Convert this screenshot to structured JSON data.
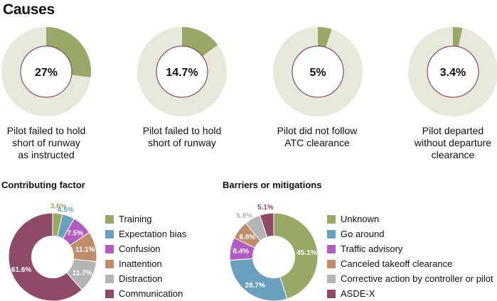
{
  "title": "Causes",
  "colors": {
    "ring_bg": "#e6e9dc",
    "ring_fill": "#98a866",
    "center_stroke": "#8a4a66"
  },
  "causes": [
    {
      "value_label": "27%",
      "value": 27,
      "label_lines": [
        "Pilot failed to hold",
        "short of runway",
        "as instructed"
      ]
    },
    {
      "value_label": "14.7%",
      "value": 14.7,
      "label_lines": [
        "Pilot failed to hold",
        "short of runway"
      ]
    },
    {
      "value_label": "5%",
      "value": 5,
      "label_lines": [
        "Pilot did not follow",
        "ATC clearance"
      ]
    },
    {
      "value_label": "3.4%",
      "value": 3.4,
      "label_lines": [
        "Pilot departed",
        "without departure",
        "clearance"
      ]
    }
  ],
  "contributing": {
    "title": "Contributing factor",
    "legend": [
      {
        "label": "Training",
        "color": "#98a866"
      },
      {
        "label": "Expectation bias",
        "color": "#6a9fbd"
      },
      {
        "label": "Confusion",
        "color": "#b25cc1"
      },
      {
        "label": "Inattention",
        "color": "#bf8c6c"
      },
      {
        "label": "Distraction",
        "color": "#b4b4b4"
      },
      {
        "label": "Communication",
        "color": "#8f4a6a"
      }
    ]
  },
  "barriers": {
    "title": "Barriers or mitigations",
    "legend": [
      {
        "label": "Unknown",
        "color": "#98a866"
      },
      {
        "label": "Go around",
        "color": "#6a9fbd"
      },
      {
        "label": "Traffic advisory",
        "color": "#b25cc1"
      },
      {
        "label": "Canceled takeoff clearance",
        "color": "#bf8c6c"
      },
      {
        "label": "Corrective action by controller or pilot",
        "color": "#b4b4b4"
      },
      {
        "label": "ASDE-X",
        "color": "#8f4a6a"
      }
    ]
  },
  "chart_data": [
    {
      "type": "pie",
      "title": "Pilot failed to hold short of runway as instructed",
      "values": [
        27
      ],
      "labels": [
        "27%"
      ]
    },
    {
      "type": "pie",
      "title": "Pilot failed to hold short of runway",
      "values": [
        14.7
      ],
      "labels": [
        "14.7%"
      ]
    },
    {
      "type": "pie",
      "title": "Pilot did not follow ATC clearance",
      "values": [
        5
      ],
      "labels": [
        "5%"
      ]
    },
    {
      "type": "pie",
      "title": "Pilot departed without departure clearance",
      "values": [
        3.4
      ],
      "labels": [
        "3.4%"
      ]
    },
    {
      "type": "pie",
      "title": "Contributing factor",
      "categories": [
        "Training",
        "Expectation bias",
        "Confusion",
        "Inattention",
        "Distraction",
        "Communication"
      ],
      "values": [
        3.6,
        4.5,
        7.5,
        11.1,
        11.7,
        61.6
      ],
      "labels": [
        "3.6%",
        "4.5%",
        "7.5%",
        "11.1%",
        "11.7%",
        "61.6%"
      ],
      "colors": [
        "#98a866",
        "#6a9fbd",
        "#b25cc1",
        "#bf8c6c",
        "#b4b4b4",
        "#8f4a6a"
      ],
      "label_colors": [
        "#98a866",
        "#6a9fbd",
        "#ffffff",
        "#ffffff",
        "#ffffff",
        "#ffffff"
      ]
    },
    {
      "type": "pie",
      "title": "Barriers or mitigations",
      "categories": [
        "Unknown",
        "Go around",
        "Traffic advisory",
        "Canceled takeoff clearance",
        "Corrective action by controller or pilot",
        "ASDE-X"
      ],
      "values": [
        45.1,
        28.7,
        8.4,
        6.8,
        5.9,
        5.1
      ],
      "labels": [
        "45.1%",
        "28.7%",
        "8.4%",
        "6.8%",
        "5.9%",
        "5.1%"
      ],
      "colors": [
        "#98a866",
        "#6a9fbd",
        "#b25cc1",
        "#bf8c6c",
        "#b4b4b4",
        "#8f4a6a"
      ],
      "label_colors": [
        "#ffffff",
        "#ffffff",
        "#ffffff",
        "#ffffff",
        "#b4b4b4",
        "#8f4a6a"
      ]
    }
  ]
}
